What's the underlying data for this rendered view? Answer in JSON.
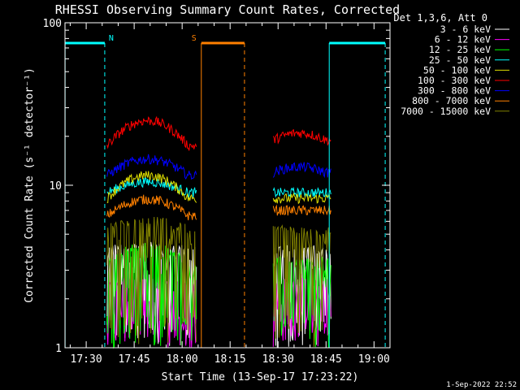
{
  "chart_data": {
    "type": "line",
    "title": "RHESSI Observing Summary Count Rates, Corrected",
    "xlabel": "Start Time (13-Sep-17 17:23:22)",
    "ylabel": "Corrected Count Rate (s⁻¹ detector⁻¹)",
    "y_scale": "log",
    "ylim": [
      1,
      100
    ],
    "y_ticks": [
      1,
      10,
      100
    ],
    "y_tick_labels": [
      "1",
      "10",
      "100"
    ],
    "x_range_minutes_after_1700": [
      23.37,
      125
    ],
    "x_ticks_minutes_after_1700": [
      30,
      45,
      60,
      75,
      90,
      105,
      120
    ],
    "x_tick_labels": [
      "17:30",
      "17:45",
      "18:00",
      "18:15",
      "18:30",
      "18:45",
      "19:00"
    ],
    "legend_title": "Det 1,3,6, Att 0",
    "legend_position": "right",
    "footer": "1-Sep-2022 22:52",
    "segments_minutes_after_1700": [
      [
        36.5,
        64.5
      ],
      [
        88.5,
        106.5
      ]
    ],
    "series": [
      {
        "name": "3 - 6 keV",
        "color": "#ffffff",
        "segment_levels": [
          [
            4.0,
            4.2
          ],
          [
            4.0,
            4.0
          ]
        ]
      },
      {
        "name": "6 - 12 keV",
        "color": "#ff00ff",
        "segment_levels": [
          [
            2.5,
            2.5
          ],
          [
            2.5,
            2.5
          ]
        ]
      },
      {
        "name": "12 - 25 keV",
        "color": "#00ff00",
        "segment_levels": [
          [
            3.4,
            4.2
          ],
          [
            3.4,
            3.4
          ]
        ]
      },
      {
        "name": "25 - 50 keV",
        "color": "#00ffff",
        "segment_levels": [
          [
            9.0,
            10.5
          ],
          [
            9.0,
            9.0
          ]
        ]
      },
      {
        "name": "50 - 100 keV",
        "color": "#e0e000",
        "segment_levels": [
          [
            8.3,
            11.5
          ],
          [
            8.3,
            8.3
          ]
        ]
      },
      {
        "name": "100 - 300 keV",
        "color": "#ff0000",
        "segment_levels": [
          [
            17.5,
            25.0
          ],
          [
            19.0,
            21.0
          ]
        ]
      },
      {
        "name": "300 - 800 keV",
        "color": "#0000ff",
        "segment_levels": [
          [
            11.5,
            14.5
          ],
          [
            12.0,
            13.0
          ]
        ]
      },
      {
        "name": "800 - 7000 keV",
        "color": "#ff8000",
        "segment_levels": [
          [
            6.5,
            8.2
          ],
          [
            7.0,
            7.0
          ]
        ]
      },
      {
        "name": "7000 - 15000 keV",
        "color": "#808000",
        "segment_levels": [
          [
            5.5,
            6.0
          ],
          [
            5.3,
            5.3
          ]
        ]
      }
    ],
    "markers": [
      {
        "label": "N",
        "color": "#00ffff",
        "bar_minutes_after_1700": [
          23.37,
          35.8
        ],
        "vline_solid_minute": 23.4,
        "vline_dashed_minute": 35.8
      },
      {
        "label": "S",
        "color": "#ff8000",
        "bar_minutes_after_1700": [
          66.0,
          79.5
        ],
        "vline_solid_minute": 66.0,
        "vline_dashed_minute": 79.5
      },
      {
        "label": "",
        "color": "#00ffff",
        "bar_minutes_after_1700": [
          106.0,
          123.5
        ],
        "vline_solid_minute": 106.0,
        "vline_dashed_minute": 123.5
      }
    ],
    "marker_level": 75
  }
}
